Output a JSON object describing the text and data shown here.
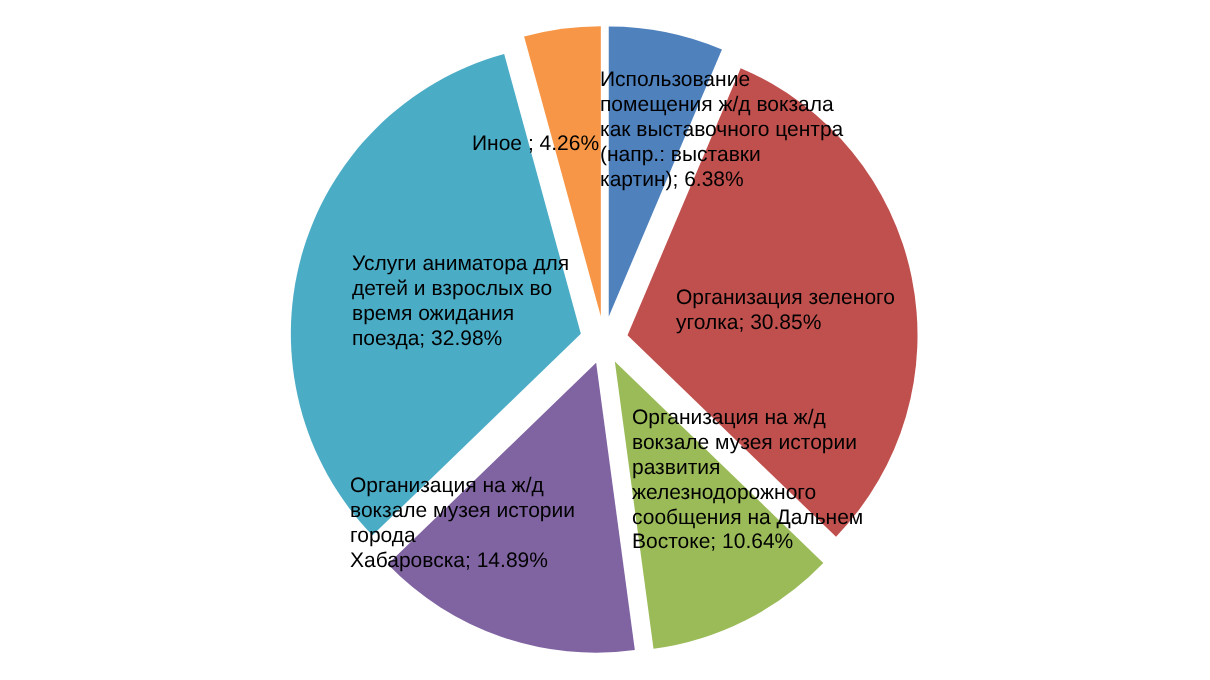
{
  "chart_data": {
    "type": "pie",
    "categories": [
      "Использование помещения ж/д вокзала как выставочного центра (напр.: выставки картин)",
      "Организация зеленого уголка",
      "Организация на ж/д вокзале музея истории развития железнодорожного сообщения на Дальнем Востоке",
      "Организация на ж/д вокзале музея истории города Хабаровска",
      "Услуги аниматора для детей и взрослых во время ожидания поезда",
      "Иное "
    ],
    "values": [
      6.38,
      30.85,
      10.64,
      14.89,
      32.98,
      4.26
    ],
    "value_labels": [
      "6.38%",
      "30.85%",
      "10.64%",
      "14.89%",
      "32.98%",
      "4.26%"
    ],
    "colors": [
      "#4f81bd",
      "#c0504d",
      "#9bbb59",
      "#8064a2",
      "#4bacc6",
      "#f79646"
    ],
    "legend": false
  }
}
